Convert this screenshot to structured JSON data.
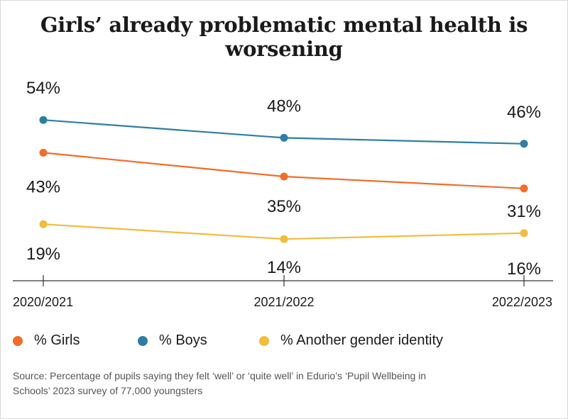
{
  "chart_data": {
    "type": "line",
    "title": "Girls’ already problematic mental health is worsening",
    "categories": [
      "2020/2021",
      "2021/2022",
      "2022/2023"
    ],
    "series": [
      {
        "name": "% Boys",
        "color": "#2e7ea1",
        "values": [
          54,
          48,
          46
        ],
        "labels": [
          "54%",
          "48%",
          "46%"
        ]
      },
      {
        "name": "% Girls",
        "color": "#f36c28",
        "values": [
          43,
          35,
          31
        ],
        "labels": [
          "43%",
          "35%",
          "31%"
        ]
      },
      {
        "name": "% Another gender identity",
        "color": "#f2bc3c",
        "values": [
          19,
          14,
          16
        ],
        "labels": [
          "19%",
          "14%",
          "16%"
        ]
      }
    ],
    "legend": [
      {
        "name": "% Girls",
        "color": "#f36c28"
      },
      {
        "name": "% Boys",
        "color": "#2e7ea1"
      },
      {
        "name": "% Another gender identity",
        "color": "#f2bc3c"
      }
    ],
    "ylim": [
      0,
      80
    ],
    "xlabel": "",
    "ylabel": "",
    "source": "Source: Percentage of pupils saying they felt ‘well’ or ‘quite well’ in Edurio’s ‘Pupil Wellbeing in Schools’ 2023 survey of 77,000 youngsters"
  }
}
